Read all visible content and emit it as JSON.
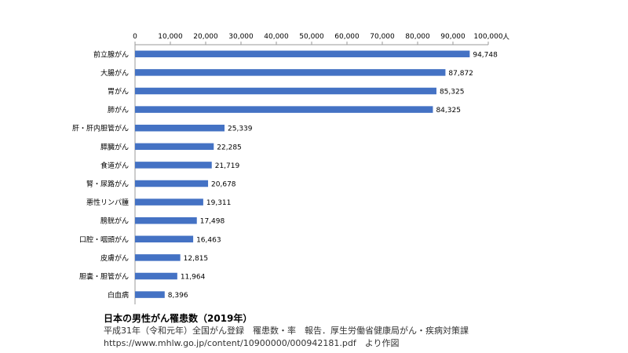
{
  "chart_data": {
    "type": "bar",
    "orientation": "horizontal",
    "unit": "人",
    "categories": [
      "前立腺がん",
      "大腸がん",
      "胃がん",
      "肺がん",
      "肝・肝内胆管がん",
      "膵臓がん",
      "食道がん",
      "腎・尿路がん",
      "悪性リンパ腫",
      "膀胱がん",
      "口腔・咽頭がん",
      "皮膚がん",
      "胆嚢・胆管がん",
      "白血病"
    ],
    "values": [
      94748,
      87872,
      85325,
      84325,
      25339,
      22285,
      21719,
      20678,
      19311,
      17498,
      16463,
      12815,
      11964,
      8396
    ],
    "value_labels": [
      "94,748",
      "87,872",
      "85,325",
      "84,325",
      "25,339",
      "22,285",
      "21,719",
      "20,678",
      "19,311",
      "17,498",
      "16,463",
      "12,815",
      "11,964",
      "8,396"
    ],
    "xlim": [
      0,
      100000
    ],
    "ticks": [
      0,
      10000,
      20000,
      30000,
      40000,
      50000,
      60000,
      70000,
      80000,
      90000,
      100000
    ],
    "tick_labels": [
      "0",
      "10,000",
      "20,000",
      "30,000",
      "40,000",
      "50,000",
      "60,000",
      "70,000",
      "80,000",
      "90,000",
      "100,000"
    ],
    "axis_position": "top",
    "grid": false,
    "bar_color": "#4472C4"
  },
  "caption": {
    "title": "日本の男性がん罹患数（2019年）",
    "source_line1": "平成31年（令和元年）全国がん登録　罹患数・率　報告．厚生労働省健康局がん・疾病対策課",
    "source_line2": "https://www.mhlw.go.jp/content/10900000/000942181.pdf　より作図"
  }
}
